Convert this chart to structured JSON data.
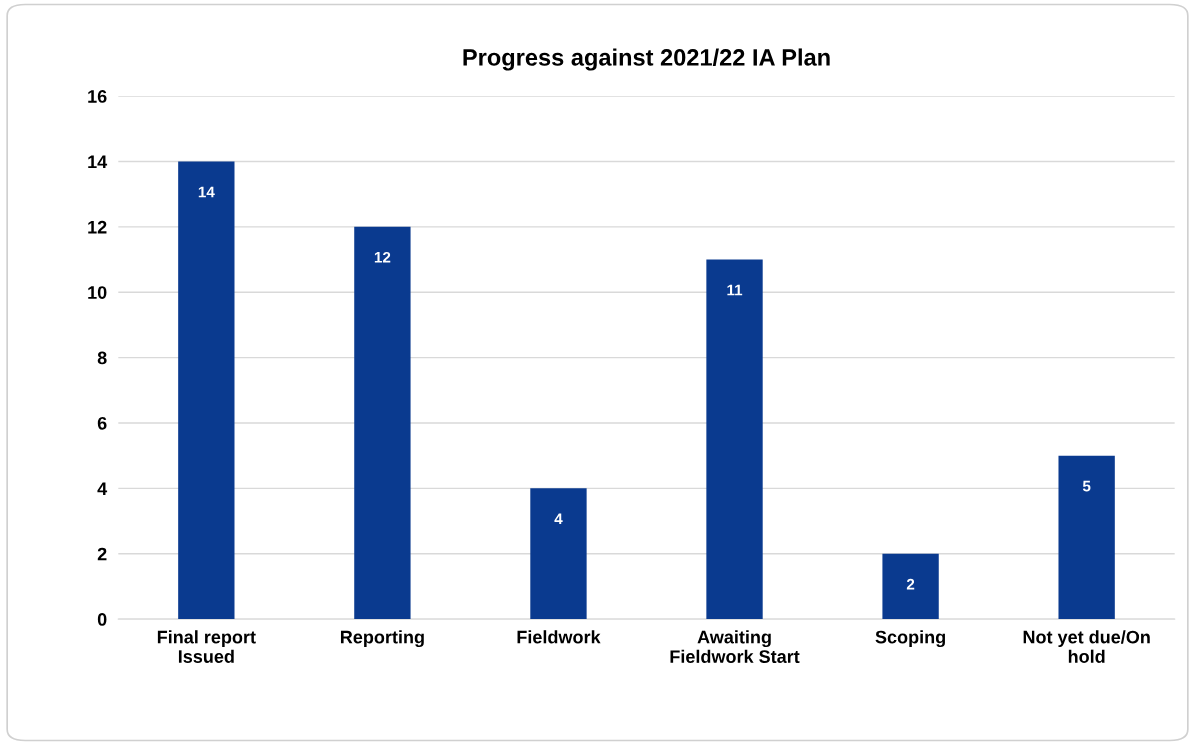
{
  "chart_data": {
    "type": "bar",
    "title": "Progress against 2021/22 IA Plan",
    "categories": [
      "Final report Issued",
      "Reporting",
      "Fieldwork",
      "Awaiting Fieldwork Start",
      "Scoping",
      "Not yet due/On hold"
    ],
    "values": [
      14,
      12,
      4,
      11,
      2,
      5
    ],
    "color": "#0a3a8f",
    "ylim": [
      0,
      16
    ],
    "yticks": [
      0,
      2,
      4,
      6,
      8,
      10,
      12,
      14,
      16
    ],
    "grid": "y",
    "data_labels": true
  }
}
